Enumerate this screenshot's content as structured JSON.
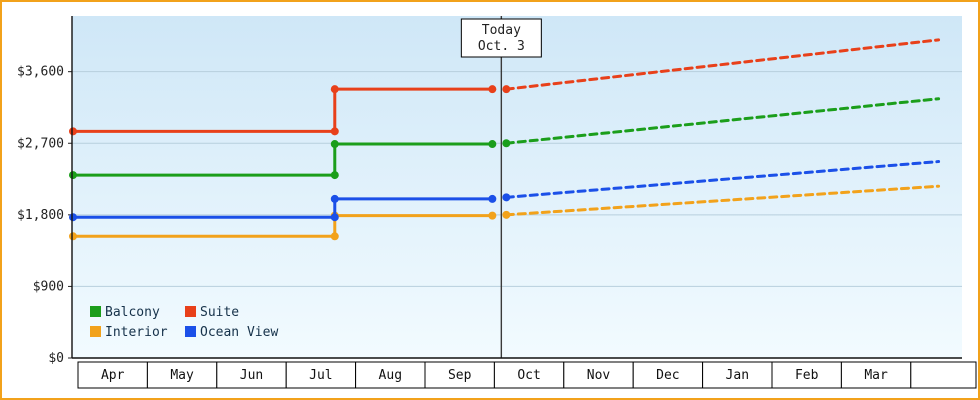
{
  "chart_data": {
    "type": "line",
    "title": "",
    "today": {
      "label_line1": "Today",
      "label_line2": "Oct. 3",
      "month_fraction": 6.1
    },
    "months": [
      "Apr",
      "May",
      "Jun",
      "Jul",
      "Aug",
      "Sep",
      "Oct",
      "Nov",
      "Dec",
      "Jan",
      "Feb",
      "Mar"
    ],
    "y_axis": {
      "tick_labels": [
        "$0",
        "$900",
        "$1,800",
        "$2,700",
        "$3,600"
      ],
      "tick_values": [
        0,
        900,
        1800,
        2700,
        3600
      ],
      "max": 4300
    },
    "step_month_fraction": 3.7,
    "projection_end_fraction": 12.4,
    "series": [
      {
        "name": "Balcony",
        "color": "#1b9e1b",
        "start_price": 2300,
        "stepped_price": 2690,
        "today_price": 2700,
        "projected_end_price": 3260
      },
      {
        "name": "Suite",
        "color": "#e8401a",
        "start_price": 2850,
        "stepped_price": 3380,
        "today_price": 3380,
        "projected_end_price": 4000
      },
      {
        "name": "Interior",
        "color": "#f2a21b",
        "start_price": 1530,
        "stepped_price": 1790,
        "today_price": 1800,
        "projected_end_price": 2160
      },
      {
        "name": "Ocean View",
        "color": "#1b50e8",
        "start_price": 1770,
        "stepped_price": 2000,
        "today_price": 2020,
        "projected_end_price": 2470
      }
    ],
    "legend": {
      "rows": [
        [
          "Balcony",
          "Suite"
        ],
        [
          "Interior",
          "Ocean View"
        ]
      ],
      "position": "bottom-left"
    },
    "background": {
      "plot_top": "#cfe7f7",
      "plot_bottom": "#f2fbff",
      "frame_border": "#f2a21b",
      "gridline": "#b7cfdd"
    }
  }
}
